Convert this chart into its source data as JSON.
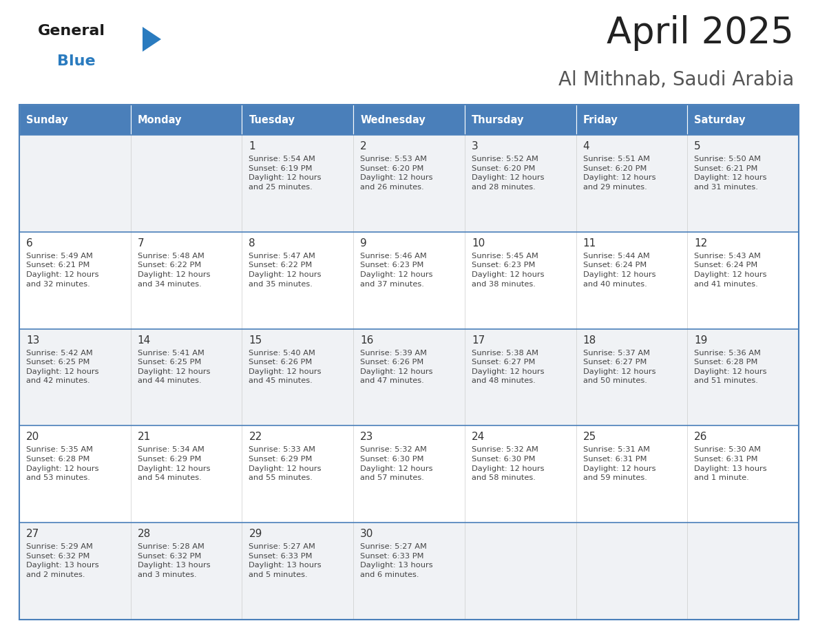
{
  "title": "April 2025",
  "subtitle": "Al Mithnab, Saudi Arabia",
  "days_of_week": [
    "Sunday",
    "Monday",
    "Tuesday",
    "Wednesday",
    "Thursday",
    "Friday",
    "Saturday"
  ],
  "header_bg": "#4a7fba",
  "header_text": "#ffffff",
  "cell_bg_white": "#ffffff",
  "cell_bg_gray": "#f0f2f5",
  "cell_border": "#4a7fba",
  "row_divider": "#4a7fba",
  "title_color": "#222222",
  "subtitle_color": "#555555",
  "day_num_color": "#333333",
  "info_color": "#444444",
  "logo_general_color": "#1a1a1a",
  "logo_blue_color": "#2a7bbf",
  "logo_triangle_color": "#2a7bbf",
  "weeks": [
    [
      {
        "day": null,
        "info": ""
      },
      {
        "day": null,
        "info": ""
      },
      {
        "day": 1,
        "info": "Sunrise: 5:54 AM\nSunset: 6:19 PM\nDaylight: 12 hours\nand 25 minutes."
      },
      {
        "day": 2,
        "info": "Sunrise: 5:53 AM\nSunset: 6:20 PM\nDaylight: 12 hours\nand 26 minutes."
      },
      {
        "day": 3,
        "info": "Sunrise: 5:52 AM\nSunset: 6:20 PM\nDaylight: 12 hours\nand 28 minutes."
      },
      {
        "day": 4,
        "info": "Sunrise: 5:51 AM\nSunset: 6:20 PM\nDaylight: 12 hours\nand 29 minutes."
      },
      {
        "day": 5,
        "info": "Sunrise: 5:50 AM\nSunset: 6:21 PM\nDaylight: 12 hours\nand 31 minutes."
      }
    ],
    [
      {
        "day": 6,
        "info": "Sunrise: 5:49 AM\nSunset: 6:21 PM\nDaylight: 12 hours\nand 32 minutes."
      },
      {
        "day": 7,
        "info": "Sunrise: 5:48 AM\nSunset: 6:22 PM\nDaylight: 12 hours\nand 34 minutes."
      },
      {
        "day": 8,
        "info": "Sunrise: 5:47 AM\nSunset: 6:22 PM\nDaylight: 12 hours\nand 35 minutes."
      },
      {
        "day": 9,
        "info": "Sunrise: 5:46 AM\nSunset: 6:23 PM\nDaylight: 12 hours\nand 37 minutes."
      },
      {
        "day": 10,
        "info": "Sunrise: 5:45 AM\nSunset: 6:23 PM\nDaylight: 12 hours\nand 38 minutes."
      },
      {
        "day": 11,
        "info": "Sunrise: 5:44 AM\nSunset: 6:24 PM\nDaylight: 12 hours\nand 40 minutes."
      },
      {
        "day": 12,
        "info": "Sunrise: 5:43 AM\nSunset: 6:24 PM\nDaylight: 12 hours\nand 41 minutes."
      }
    ],
    [
      {
        "day": 13,
        "info": "Sunrise: 5:42 AM\nSunset: 6:25 PM\nDaylight: 12 hours\nand 42 minutes."
      },
      {
        "day": 14,
        "info": "Sunrise: 5:41 AM\nSunset: 6:25 PM\nDaylight: 12 hours\nand 44 minutes."
      },
      {
        "day": 15,
        "info": "Sunrise: 5:40 AM\nSunset: 6:26 PM\nDaylight: 12 hours\nand 45 minutes."
      },
      {
        "day": 16,
        "info": "Sunrise: 5:39 AM\nSunset: 6:26 PM\nDaylight: 12 hours\nand 47 minutes."
      },
      {
        "day": 17,
        "info": "Sunrise: 5:38 AM\nSunset: 6:27 PM\nDaylight: 12 hours\nand 48 minutes."
      },
      {
        "day": 18,
        "info": "Sunrise: 5:37 AM\nSunset: 6:27 PM\nDaylight: 12 hours\nand 50 minutes."
      },
      {
        "day": 19,
        "info": "Sunrise: 5:36 AM\nSunset: 6:28 PM\nDaylight: 12 hours\nand 51 minutes."
      }
    ],
    [
      {
        "day": 20,
        "info": "Sunrise: 5:35 AM\nSunset: 6:28 PM\nDaylight: 12 hours\nand 53 minutes."
      },
      {
        "day": 21,
        "info": "Sunrise: 5:34 AM\nSunset: 6:29 PM\nDaylight: 12 hours\nand 54 minutes."
      },
      {
        "day": 22,
        "info": "Sunrise: 5:33 AM\nSunset: 6:29 PM\nDaylight: 12 hours\nand 55 minutes."
      },
      {
        "day": 23,
        "info": "Sunrise: 5:32 AM\nSunset: 6:30 PM\nDaylight: 12 hours\nand 57 minutes."
      },
      {
        "day": 24,
        "info": "Sunrise: 5:32 AM\nSunset: 6:30 PM\nDaylight: 12 hours\nand 58 minutes."
      },
      {
        "day": 25,
        "info": "Sunrise: 5:31 AM\nSunset: 6:31 PM\nDaylight: 12 hours\nand 59 minutes."
      },
      {
        "day": 26,
        "info": "Sunrise: 5:30 AM\nSunset: 6:31 PM\nDaylight: 13 hours\nand 1 minute."
      }
    ],
    [
      {
        "day": 27,
        "info": "Sunrise: 5:29 AM\nSunset: 6:32 PM\nDaylight: 13 hours\nand 2 minutes."
      },
      {
        "day": 28,
        "info": "Sunrise: 5:28 AM\nSunset: 6:32 PM\nDaylight: 13 hours\nand 3 minutes."
      },
      {
        "day": 29,
        "info": "Sunrise: 5:27 AM\nSunset: 6:33 PM\nDaylight: 13 hours\nand 5 minutes."
      },
      {
        "day": 30,
        "info": "Sunrise: 5:27 AM\nSunset: 6:33 PM\nDaylight: 13 hours\nand 6 minutes."
      },
      {
        "day": null,
        "info": ""
      },
      {
        "day": null,
        "info": ""
      },
      {
        "day": null,
        "info": ""
      }
    ]
  ]
}
